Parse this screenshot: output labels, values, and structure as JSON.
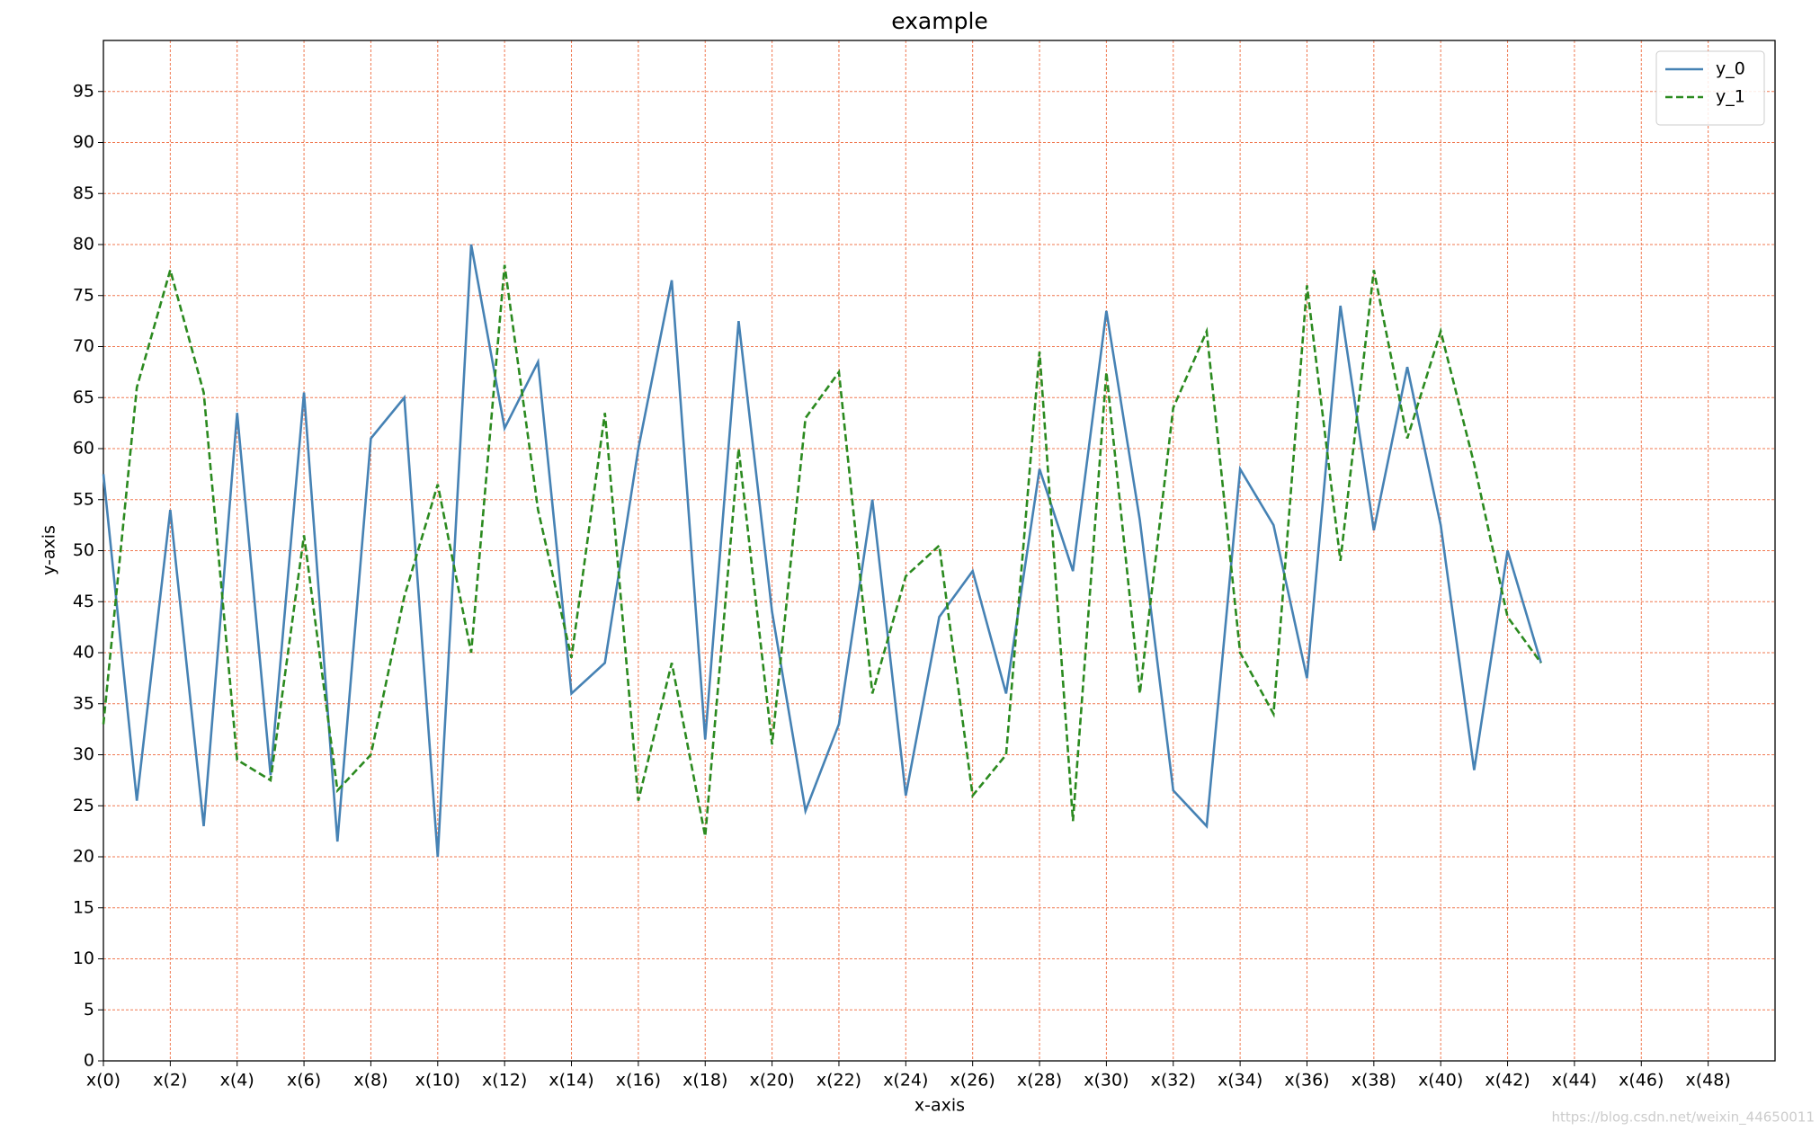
{
  "chart_data": {
    "type": "line",
    "title": "example",
    "x_label": "x-axis",
    "y_label": "y-axis",
    "x": [
      0,
      1,
      2,
      3,
      4,
      5,
      6,
      7,
      8,
      9,
      10,
      11,
      12,
      13,
      14,
      15,
      16,
      17,
      18,
      19,
      20,
      21,
      22,
      23,
      24,
      25,
      26,
      27,
      28,
      29,
      30,
      31,
      32,
      33,
      34,
      35,
      36,
      37,
      38,
      39,
      40,
      41,
      42,
      43
    ],
    "series": [
      {
        "name": "y_0",
        "color": "#4682b4",
        "dash": false,
        "values": [
          57.5,
          25.5,
          54,
          23,
          63.5,
          28,
          65.5,
          21.5,
          61,
          65,
          20,
          80,
          62,
          68.5,
          36,
          39,
          60,
          76.5,
          31.5,
          72.5,
          44,
          24.5,
          33,
          55,
          26,
          43.5,
          48,
          36,
          58,
          48,
          73.5,
          53,
          26.5,
          23,
          58,
          52.5,
          37.5,
          74,
          52,
          68,
          52.5,
          28.5,
          50,
          39
        ]
      },
      {
        "name": "y_1",
        "color": "#2b8a1f",
        "dash": true,
        "values": [
          33,
          66,
          77.5,
          65.5,
          29.5,
          27.5,
          51.5,
          26.5,
          30,
          45.5,
          56.5,
          40,
          78,
          54,
          39.5,
          63.5,
          25.5,
          39,
          22,
          60,
          31,
          63,
          67.5,
          36,
          47.5,
          50.5,
          26,
          30,
          69.5,
          23.5,
          67.5,
          36,
          64,
          71.5,
          40,
          34,
          76,
          49,
          77.5,
          61,
          71.5,
          58.5,
          43.5,
          39
        ]
      }
    ],
    "xlim": [
      0,
      50
    ],
    "ylim": [
      0,
      100
    ],
    "xticks": [
      {
        "value": 0,
        "label": "x(0)"
      },
      {
        "value": 2,
        "label": "x(2)"
      },
      {
        "value": 4,
        "label": "x(4)"
      },
      {
        "value": 6,
        "label": "x(6)"
      },
      {
        "value": 8,
        "label": "x(8)"
      },
      {
        "value": 10,
        "label": "x(10)"
      },
      {
        "value": 12,
        "label": "x(12)"
      },
      {
        "value": 14,
        "label": "x(14)"
      },
      {
        "value": 16,
        "label": "x(16)"
      },
      {
        "value": 18,
        "label": "x(18)"
      },
      {
        "value": 20,
        "label": "x(20)"
      },
      {
        "value": 22,
        "label": "x(22)"
      },
      {
        "value": 24,
        "label": "x(24)"
      },
      {
        "value": 26,
        "label": "x(26)"
      },
      {
        "value": 28,
        "label": "x(28)"
      },
      {
        "value": 30,
        "label": "x(30)"
      },
      {
        "value": 32,
        "label": "x(32)"
      },
      {
        "value": 34,
        "label": "x(34)"
      },
      {
        "value": 36,
        "label": "x(36)"
      },
      {
        "value": 38,
        "label": "x(38)"
      },
      {
        "value": 40,
        "label": "x(40)"
      },
      {
        "value": 42,
        "label": "x(42)"
      },
      {
        "value": 44,
        "label": "x(44)"
      },
      {
        "value": 46,
        "label": "x(46)"
      },
      {
        "value": 48,
        "label": "x(48)"
      }
    ],
    "yticks": [
      0,
      5,
      10,
      15,
      20,
      25,
      30,
      35,
      40,
      45,
      50,
      55,
      60,
      65,
      70,
      75,
      80,
      85,
      90,
      95
    ],
    "grid": true,
    "grid_color": "#f07850",
    "legend": "upper right",
    "watermark": "https://blog.csdn.net/weixin_44650011"
  }
}
